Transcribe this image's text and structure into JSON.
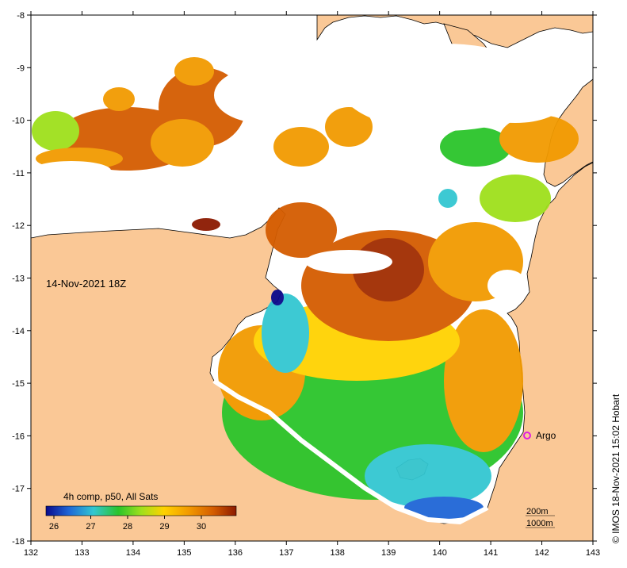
{
  "map": {
    "date_label": "14-Nov-2021 18Z",
    "credit": "© IMOS 18-Nov-2021 15:02 Hobart",
    "lon_ticks": [
      "132",
      "133",
      "134",
      "135",
      "136",
      "137",
      "138",
      "139",
      "140",
      "141",
      "142",
      "143"
    ],
    "lat_ticks": [
      "-8",
      "-9",
      "-10",
      "-11",
      "-12",
      "-13",
      "-14",
      "-15",
      "-16",
      "-17",
      "-18"
    ],
    "colorbar": {
      "title": "4h comp, p50, All Sats",
      "labels": [
        "26",
        "27",
        "28",
        "29",
        "30"
      ],
      "colors": [
        "#0a0a8c",
        "#1f66d6",
        "#33c7d1",
        "#2bc42b",
        "#9fe01c",
        "#ffd200",
        "#f29a00",
        "#d45c00",
        "#8c1a00"
      ]
    },
    "argo": {
      "label": "Argo",
      "color": "#e020e0"
    },
    "isobaths": {
      "line1": "200m",
      "line2": "1000m"
    },
    "land_color": "#fac896",
    "cloud_color": "#ffffff"
  }
}
